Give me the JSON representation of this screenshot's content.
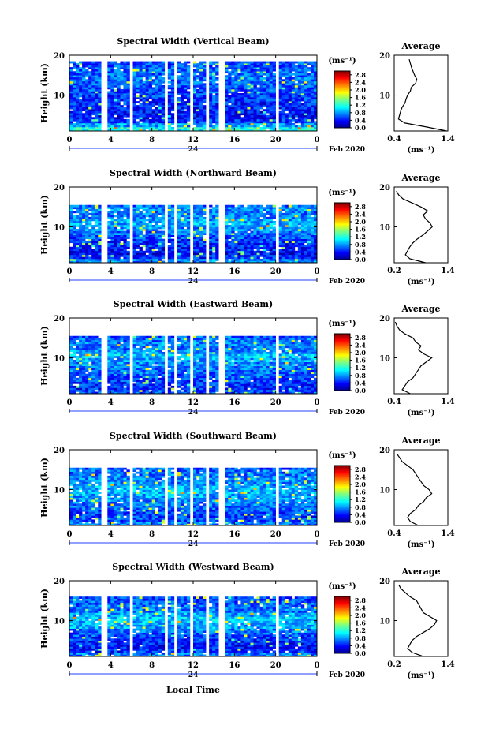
{
  "figure": {
    "date_label": "Feb 2020",
    "x_label": "Local Time",
    "day_label": "24",
    "colorbar_unit": "(ms⁻¹)",
    "colorbar_ticks": [
      "0.0",
      "0.4",
      "0.8",
      "1.2",
      "1.6",
      "2.0",
      "2.4",
      "2.8"
    ],
    "colors": {
      "missing": "#ffffff",
      "axis": "#000000",
      "low": "#2040ff",
      "high": "#c01010"
    }
  },
  "chart_data": [
    {
      "type": "heatmap",
      "title": "Spectral Width (Vertical Beam)",
      "xlabel": "",
      "ylabel": "Height (km)",
      "x_ticks": [
        "0",
        "4",
        "8",
        "12",
        "16",
        "20",
        "0"
      ],
      "xlim": [
        0,
        24
      ],
      "y_ticks": [
        "10",
        "20"
      ],
      "ylim": [
        1,
        20
      ],
      "colorbar": {
        "label": "(ms⁻¹)",
        "ticks": [
          0,
          0.4,
          0.8,
          1.2,
          1.6,
          2.0,
          2.4,
          2.8
        ],
        "range": [
          0,
          3.0
        ]
      },
      "top_km": 18.5,
      "data_gaps_hours": [
        [
          3.2,
          3.6
        ],
        [
          5.8,
          6.0
        ],
        [
          9.2,
          9.6
        ],
        [
          10.2,
          10.4
        ],
        [
          11.0,
          11.2
        ],
        [
          11.8,
          12.0
        ],
        [
          13.2,
          13.6
        ],
        [
          14.6,
          15.0
        ],
        [
          20.0,
          20.4
        ]
      ],
      "average_profile": {
        "title": "Average",
        "xlabel": "(ms⁻¹)",
        "xlim": [
          0.4,
          1.4
        ],
        "x_ticks": [
          "0.4",
          "1.4"
        ],
        "y_ticks": [
          "10",
          "20"
        ],
        "ylim": [
          1,
          20
        ],
        "height_km": [
          1,
          2,
          3,
          4,
          5,
          6,
          7,
          8,
          9,
          10,
          11,
          12,
          13,
          14,
          15,
          16,
          17,
          18,
          19
        ],
        "value_ms": [
          1.38,
          1.0,
          0.6,
          0.48,
          0.5,
          0.52,
          0.55,
          0.6,
          0.62,
          0.65,
          0.7,
          0.72,
          0.8,
          0.82,
          0.78,
          0.75,
          0.72,
          0.7,
          0.68
        ]
      }
    },
    {
      "type": "heatmap",
      "title": "Spectral Width (Northward Beam)",
      "xlabel": "",
      "ylabel": "Height (km)",
      "x_ticks": [
        "0",
        "4",
        "8",
        "12",
        "16",
        "20",
        "0"
      ],
      "xlim": [
        0,
        24
      ],
      "y_ticks": [
        "10",
        "20"
      ],
      "ylim": [
        1,
        20
      ],
      "colorbar": {
        "label": "(ms⁻¹)",
        "ticks": [
          0,
          0.4,
          0.8,
          1.2,
          1.6,
          2.0,
          2.4,
          2.8
        ],
        "range": [
          0,
          3.0
        ]
      },
      "top_km": 15.2,
      "data_gaps_hours": [
        [
          3.2,
          3.6
        ],
        [
          5.8,
          6.0
        ],
        [
          9.2,
          9.6
        ],
        [
          10.2,
          10.4
        ],
        [
          11.0,
          11.2
        ],
        [
          11.8,
          12.0
        ],
        [
          13.2,
          13.6
        ],
        [
          14.6,
          15.0
        ],
        [
          20.0,
          20.4
        ]
      ],
      "average_profile": {
        "title": "Average",
        "xlabel": "(ms⁻¹)",
        "xlim": [
          0.2,
          1.4
        ],
        "x_ticks": [
          "0.2",
          "1.4"
        ],
        "y_ticks": [
          "10",
          "20"
        ],
        "ylim": [
          1,
          20
        ],
        "height_km": [
          1,
          2,
          3,
          4,
          5,
          6,
          7,
          8,
          9,
          10,
          11,
          12,
          13,
          14,
          15,
          16,
          17,
          18,
          19
        ],
        "value_ms": [
          0.9,
          0.55,
          0.45,
          0.5,
          0.55,
          0.62,
          0.72,
          0.85,
          0.95,
          1.05,
          1.0,
          0.9,
          0.85,
          0.95,
          0.8,
          0.6,
          0.4,
          0.3,
          0.25
        ]
      }
    },
    {
      "type": "heatmap",
      "title": "Spectral Width (Eastward Beam)",
      "xlabel": "",
      "ylabel": "Height (km)",
      "x_ticks": [
        "0",
        "4",
        "8",
        "12",
        "16",
        "20",
        "0"
      ],
      "xlim": [
        0,
        24
      ],
      "y_ticks": [
        "10",
        "20"
      ],
      "ylim": [
        1,
        20
      ],
      "colorbar": {
        "label": "(ms⁻¹)",
        "ticks": [
          0,
          0.4,
          0.8,
          1.2,
          1.6,
          2.0,
          2.4,
          2.8
        ],
        "range": [
          0,
          3.0
        ]
      },
      "top_km": 15.5,
      "data_gaps_hours": [
        [
          3.2,
          3.6
        ],
        [
          5.8,
          6.0
        ],
        [
          9.2,
          9.6
        ],
        [
          10.2,
          10.4
        ],
        [
          11.0,
          11.2
        ],
        [
          11.8,
          12.0
        ],
        [
          13.2,
          13.6
        ],
        [
          14.6,
          15.0
        ],
        [
          20.0,
          20.4
        ]
      ],
      "average_profile": {
        "title": "Average",
        "xlabel": "(ms⁻¹)",
        "xlim": [
          0.4,
          1.4
        ],
        "x_ticks": [
          "0.4",
          "1.4"
        ],
        "y_ticks": [
          "10",
          "20"
        ],
        "ylim": [
          1,
          20
        ],
        "height_km": [
          1,
          2,
          3,
          4,
          5,
          6,
          7,
          8,
          9,
          10,
          11,
          12,
          13,
          14,
          15,
          16,
          17,
          18,
          19
        ],
        "value_ms": [
          0.7,
          0.55,
          0.6,
          0.65,
          0.75,
          0.8,
          0.85,
          0.9,
          1.0,
          1.1,
          0.95,
          0.85,
          0.9,
          0.8,
          0.75,
          0.6,
          0.5,
          0.45,
          0.42
        ]
      }
    },
    {
      "type": "heatmap",
      "title": "Spectral Width (Southward Beam)",
      "xlabel": "",
      "ylabel": "Height (km)",
      "x_ticks": [
        "0",
        "4",
        "8",
        "12",
        "16",
        "20",
        "0"
      ],
      "xlim": [
        0,
        24
      ],
      "y_ticks": [
        "10",
        "20"
      ],
      "ylim": [
        1,
        20
      ],
      "colorbar": {
        "label": "(ms⁻¹)",
        "ticks": [
          0,
          0.4,
          0.8,
          1.2,
          1.6,
          2.0,
          2.4,
          2.8
        ],
        "range": [
          0,
          3.0
        ]
      },
      "top_km": 15.3,
      "data_gaps_hours": [
        [
          3.2,
          3.6
        ],
        [
          5.8,
          6.0
        ],
        [
          9.2,
          9.6
        ],
        [
          10.2,
          10.4
        ],
        [
          11.0,
          11.2
        ],
        [
          11.8,
          12.0
        ],
        [
          13.2,
          13.6
        ],
        [
          14.6,
          15.0
        ],
        [
          20.0,
          20.4
        ]
      ],
      "average_profile": {
        "title": "Average",
        "xlabel": "(ms⁻¹)",
        "xlim": [
          0.4,
          1.4
        ],
        "x_ticks": [
          "0.4",
          "1.4"
        ],
        "y_ticks": [
          "10",
          "20"
        ],
        "ylim": [
          1,
          20
        ],
        "height_km": [
          1,
          2,
          3,
          4,
          5,
          6,
          7,
          8,
          9,
          10,
          11,
          12,
          13,
          14,
          15,
          16,
          17,
          18,
          19
        ],
        "value_ms": [
          0.85,
          0.7,
          0.65,
          0.7,
          0.8,
          0.85,
          0.95,
          1.0,
          1.1,
          1.05,
          0.95,
          0.9,
          0.85,
          0.8,
          0.75,
          0.65,
          0.55,
          0.5,
          0.45
        ]
      }
    },
    {
      "type": "heatmap",
      "title": "Spectral Width (Westward Beam)",
      "xlabel": "Local Time",
      "ylabel": "Height (km)",
      "x_ticks": [
        "0",
        "4",
        "8",
        "12",
        "16",
        "20",
        "0"
      ],
      "xlim": [
        0,
        24
      ],
      "y_ticks": [
        "10",
        "20"
      ],
      "ylim": [
        1,
        20
      ],
      "colorbar": {
        "label": "(ms⁻¹)",
        "ticks": [
          0,
          0.4,
          0.8,
          1.2,
          1.6,
          2.0,
          2.4,
          2.8
        ],
        "range": [
          0,
          3.0
        ]
      },
      "top_km": 15.8,
      "data_gaps_hours": [
        [
          3.2,
          3.6
        ],
        [
          5.8,
          6.0
        ],
        [
          9.2,
          9.6
        ],
        [
          10.2,
          10.4
        ],
        [
          11.0,
          11.2
        ],
        [
          11.8,
          12.0
        ],
        [
          13.2,
          13.6
        ],
        [
          14.6,
          15.0
        ],
        [
          20.0,
          20.4
        ]
      ],
      "average_profile": {
        "title": "Average",
        "xlabel": "(ms⁻¹)",
        "xlim": [
          0.2,
          1.4
        ],
        "x_ticks": [
          "0.2",
          "1.4"
        ],
        "y_ticks": [
          "10",
          "20"
        ],
        "ylim": [
          1,
          20
        ],
        "height_km": [
          1,
          2,
          3,
          4,
          5,
          6,
          7,
          8,
          9,
          10,
          11,
          12,
          13,
          14,
          15,
          16,
          17,
          18,
          19
        ],
        "value_ms": [
          0.85,
          0.6,
          0.5,
          0.55,
          0.6,
          0.7,
          0.85,
          1.0,
          1.1,
          1.15,
          1.0,
          0.85,
          0.8,
          0.75,
          0.7,
          0.55,
          0.45,
          0.35,
          0.3
        ]
      }
    }
  ]
}
